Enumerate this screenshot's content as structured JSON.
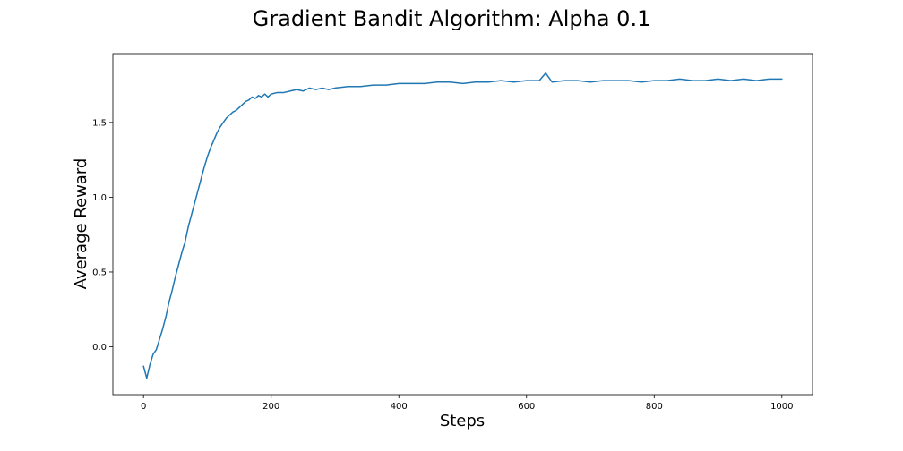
{
  "chart_data": {
    "type": "line",
    "title": "Gradient Bandit Algorithm: Alpha 0.1",
    "xlabel": "Steps",
    "ylabel": "Average Reward",
    "xlim": [
      -48,
      1048
    ],
    "ylim": [
      -0.32,
      1.96
    ],
    "xticks": [
      0,
      200,
      400,
      600,
      800,
      1000
    ],
    "yticks": [
      0.0,
      0.5,
      1.0,
      1.5
    ],
    "xtick_labels": [
      "0",
      "200",
      "400",
      "600",
      "800",
      "1000"
    ],
    "ytick_labels": [
      "0.0",
      "0.5",
      "1.0",
      "1.5"
    ],
    "grid": false,
    "line_color": "#1f77b4",
    "series": [
      {
        "x": [
          0,
          5,
          10,
          15,
          20,
          25,
          30,
          35,
          40,
          45,
          50,
          55,
          60,
          65,
          70,
          75,
          80,
          85,
          90,
          95,
          100,
          105,
          110,
          115,
          120,
          125,
          130,
          135,
          140,
          145,
          150,
          155,
          160,
          165,
          170,
          175,
          180,
          185,
          190,
          195,
          200,
          210,
          220,
          230,
          240,
          250,
          260,
          270,
          280,
          290,
          300,
          320,
          340,
          360,
          380,
          400,
          420,
          440,
          460,
          480,
          500,
          520,
          540,
          560,
          580,
          600,
          620,
          630,
          640,
          660,
          680,
          700,
          720,
          740,
          760,
          780,
          800,
          820,
          840,
          860,
          880,
          900,
          920,
          940,
          960,
          980,
          1000
        ],
        "y": [
          -0.13,
          -0.21,
          -0.12,
          -0.05,
          -0.02,
          0.05,
          0.12,
          0.2,
          0.3,
          0.38,
          0.47,
          0.55,
          0.63,
          0.7,
          0.8,
          0.88,
          0.96,
          1.04,
          1.12,
          1.2,
          1.27,
          1.33,
          1.38,
          1.43,
          1.47,
          1.5,
          1.53,
          1.55,
          1.57,
          1.58,
          1.6,
          1.62,
          1.64,
          1.65,
          1.67,
          1.66,
          1.68,
          1.67,
          1.69,
          1.67,
          1.69,
          1.7,
          1.7,
          1.71,
          1.72,
          1.71,
          1.73,
          1.72,
          1.73,
          1.72,
          1.73,
          1.74,
          1.74,
          1.75,
          1.75,
          1.76,
          1.76,
          1.76,
          1.77,
          1.77,
          1.76,
          1.77,
          1.77,
          1.78,
          1.77,
          1.78,
          1.78,
          1.83,
          1.77,
          1.78,
          1.78,
          1.77,
          1.78,
          1.78,
          1.78,
          1.77,
          1.78,
          1.78,
          1.79,
          1.78,
          1.78,
          1.79,
          1.78,
          1.79,
          1.78,
          1.79,
          1.79
        ]
      }
    ]
  }
}
